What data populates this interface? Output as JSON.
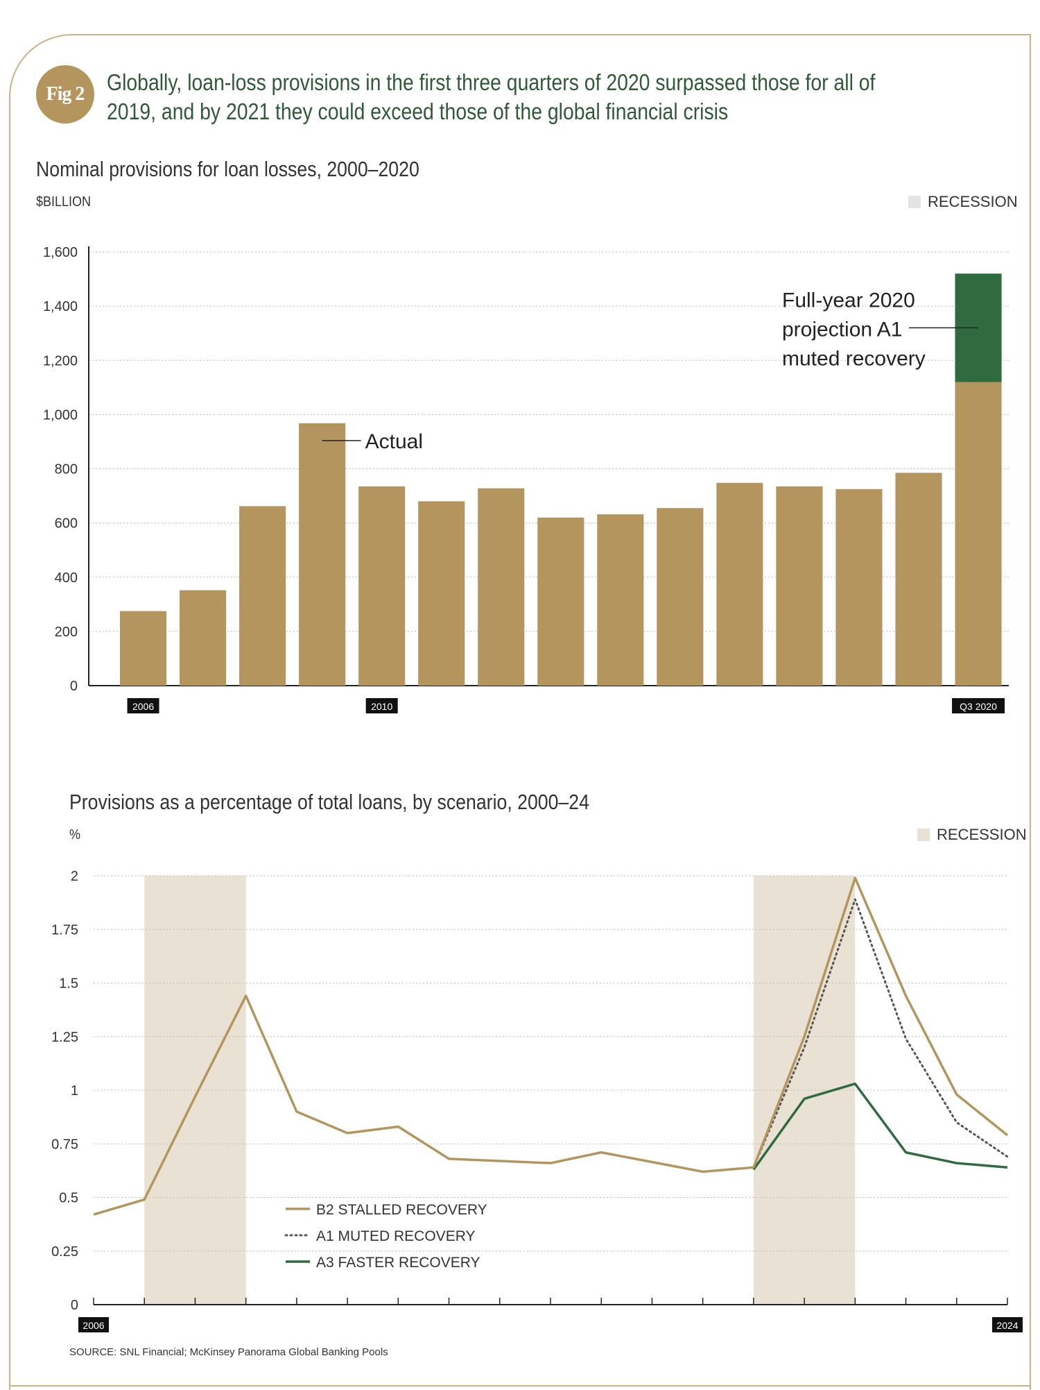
{
  "header": {
    "badge": "Fig 2",
    "headline": "Globally, loan-loss provisions in the first three quarters of 2020 surpassed those for all of 2019, and by 2021 they could exceed those of the global financial crisis"
  },
  "colors": {
    "gold": "#b4955e",
    "green": "#2f6b3f",
    "recession": "#e9e1d3",
    "recession_legend_top": "#e4e4e4"
  },
  "chart_data": [
    {
      "type": "bar",
      "title": "Nominal provisions for loan losses, 2000–2020",
      "ylabel": "$BILLION",
      "legend": {
        "recession_label": "RECESSION",
        "position": "top-right"
      },
      "ylim": [
        0,
        1600
      ],
      "yticks": [
        "0",
        "200",
        "400",
        "600",
        "800",
        "1,000",
        "1,200",
        "1,400",
        "1,600"
      ],
      "x_labels": [
        {
          "index": 0,
          "text": "2006"
        },
        {
          "index": 4,
          "text": "2010"
        },
        {
          "index": 14,
          "text": "Q3 2020"
        }
      ],
      "series": [
        {
          "name": "Actual",
          "color": "#b4955e",
          "values": [
            275,
            352,
            662,
            968,
            735,
            680,
            728,
            620,
            632,
            655,
            748,
            735,
            725,
            785,
            1120
          ]
        },
        {
          "name": "Full-year 2020 projection A1 muted recovery",
          "color": "#2f6b3f",
          "values": [
            0,
            0,
            0,
            0,
            0,
            0,
            0,
            0,
            0,
            0,
            0,
            0,
            0,
            0,
            400
          ]
        }
      ],
      "annotations": {
        "actual": "Actual",
        "projection": [
          "Full-year 2020",
          "projection A1",
          "muted recovery"
        ]
      },
      "grid": true
    },
    {
      "type": "line",
      "title": "Provisions as a percentage of total loans, by scenario, 2000–24",
      "ylabel": "%",
      "legend": {
        "recession_label": "RECESSION",
        "position": "top-right"
      },
      "ylim": [
        0,
        2
      ],
      "yticks": [
        "0",
        "0.25",
        "0.5",
        "0.75",
        "1",
        "1.25",
        "1.5",
        "1.75",
        "2"
      ],
      "x": [
        2006,
        2007,
        2008,
        2009,
        2010,
        2011,
        2012,
        2013,
        2014,
        2015,
        2016,
        2017,
        2018,
        2019,
        2020,
        2021,
        2022,
        2023,
        2024
      ],
      "x_labels": [
        {
          "index": 0,
          "text": "2006"
        },
        {
          "index": 18,
          "text": "2024"
        }
      ],
      "recession_spans": [
        [
          2007,
          2009
        ],
        [
          2019,
          2021
        ]
      ],
      "grid": true,
      "series": [
        {
          "name": "B2 STALLED RECOVERY",
          "color": "#b4955e",
          "style": "solid",
          "values": [
            0.42,
            0.49,
            0.97,
            1.44,
            0.9,
            0.8,
            0.83,
            0.68,
            0.67,
            0.66,
            0.71,
            0.665,
            0.62,
            0.64,
            1.25,
            1.99,
            1.44,
            0.98,
            0.79
          ]
        },
        {
          "name": "A1 MUTED RECOVERY",
          "color": "#555555",
          "style": "dotted",
          "values": [
            null,
            null,
            null,
            null,
            null,
            null,
            null,
            null,
            null,
            null,
            null,
            null,
            null,
            0.64,
            1.2,
            1.89,
            1.24,
            0.85,
            0.69
          ]
        },
        {
          "name": "A3 FASTER RECOVERY",
          "color": "#2f6b3f",
          "style": "solid",
          "values": [
            null,
            null,
            null,
            null,
            null,
            null,
            null,
            null,
            null,
            null,
            null,
            null,
            null,
            0.63,
            0.96,
            1.03,
            0.71,
            0.66,
            0.64
          ]
        }
      ]
    }
  ],
  "source": "SOURCE: SNL Financial; McKinsey Panorama Global Banking Pools"
}
